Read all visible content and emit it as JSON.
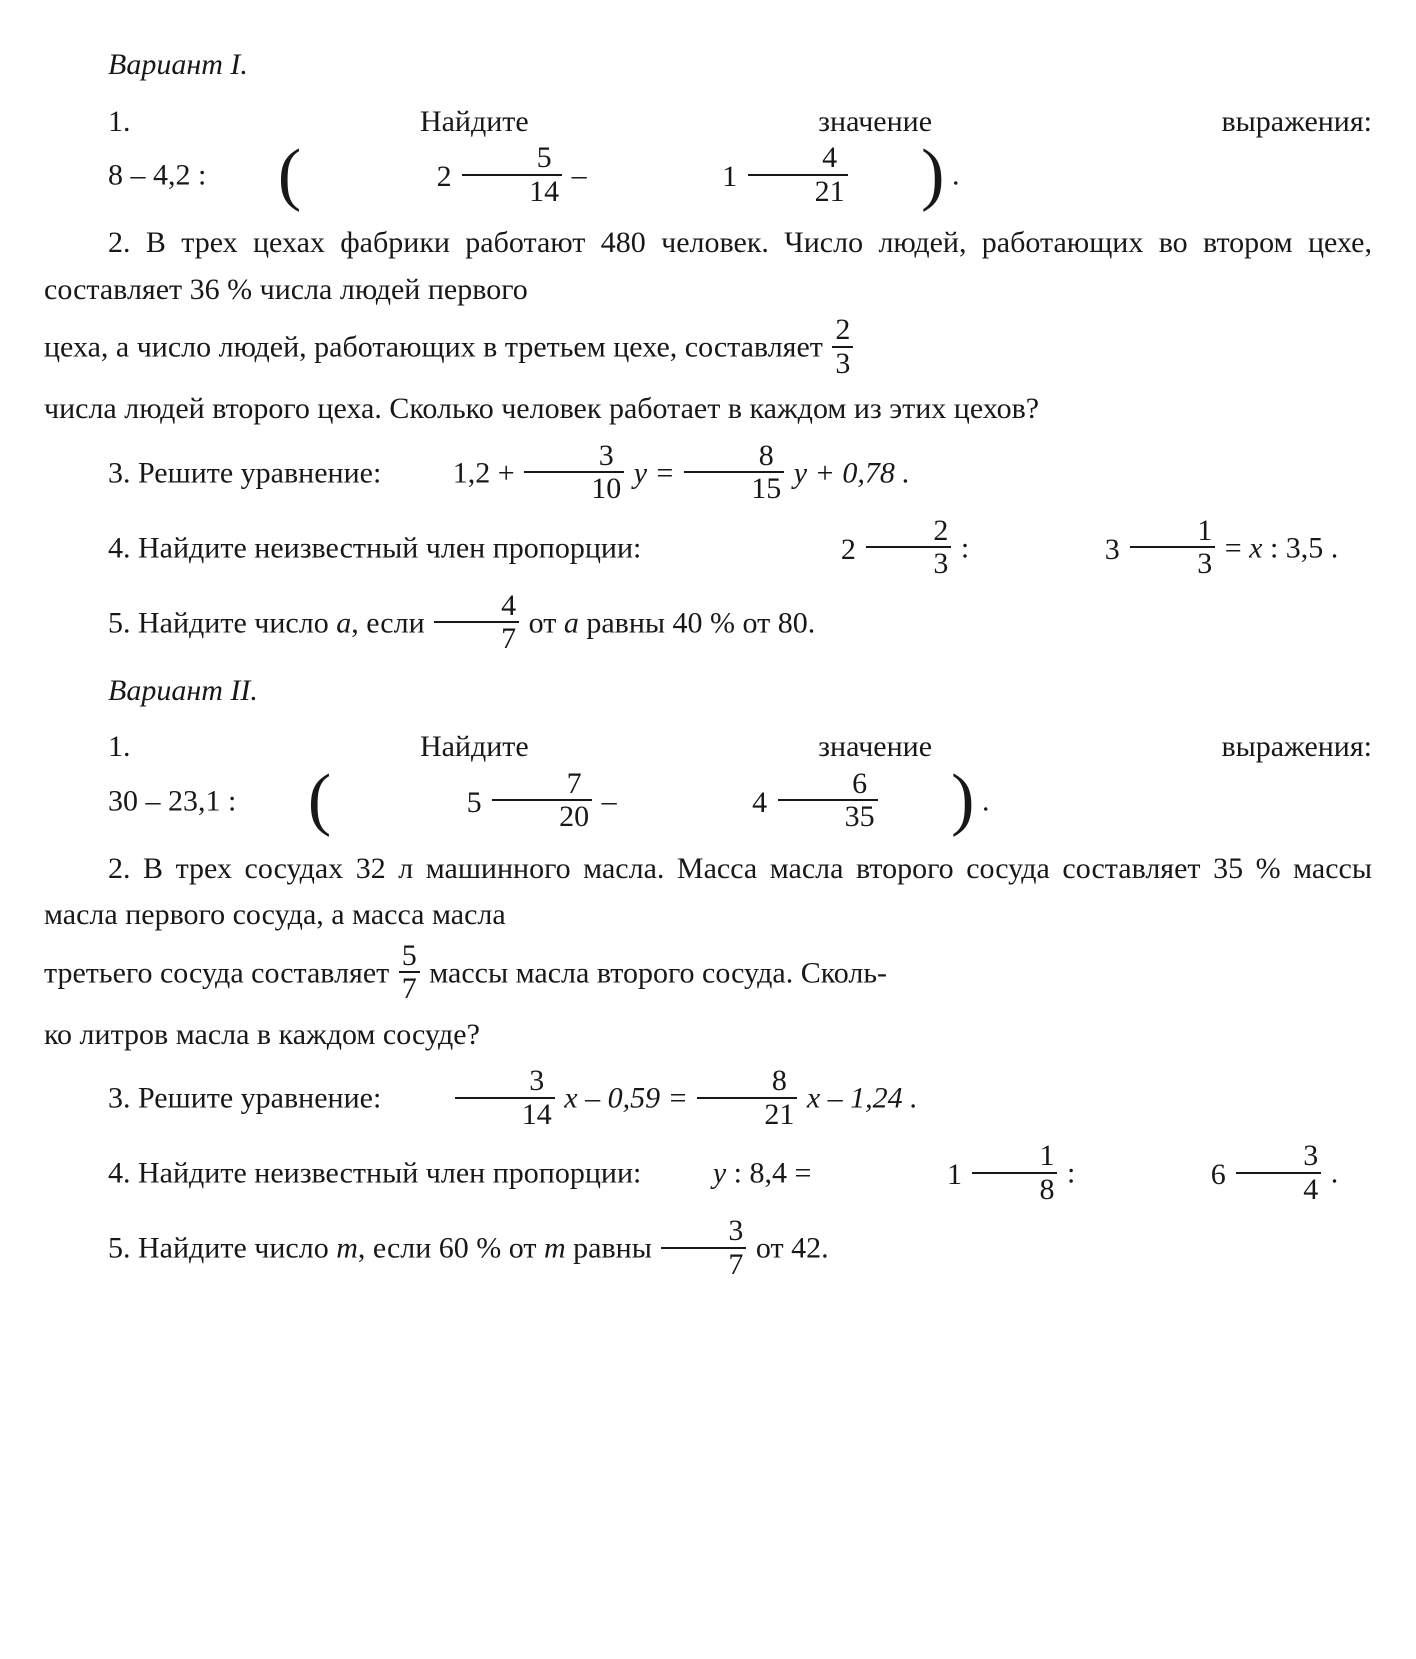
{
  "variant1": {
    "heading": "Вариант I.",
    "t1_a": "1. Найдите значение выражения: ",
    "t1_e_a": "8 – 4,2 : ",
    "t1_frac1_w": "2",
    "t1_frac1_n": "5",
    "t1_frac1_d": "14",
    "t1_mid": " – ",
    "t1_frac2_w": "1",
    "t1_frac2_n": "4",
    "t1_frac2_d": "21",
    "t1_end": " .",
    "t2_p1": "2. В трех цехах фабрики работают 480 человек. Число людей, работающих во втором цехе, составляет 36 % числа людей первого ",
    "t2_p2a": "цеха, а число людей, работающих в третьем цехе, составляет ",
    "t2_frac_n": "2",
    "t2_frac_d": "3",
    "t2_p3": "числа людей второго цеха. Сколько человек работает в каждом из этих цехов?",
    "t3_a": "3. Решите уравнение: ",
    "t3_e1": "1,2 + ",
    "t3_f1n": "3",
    "t3_f1d": "10",
    "t3_y1": " y = ",
    "t3_f2n": "8",
    "t3_f2d": "15",
    "t3_y2": " y + 0,78 .",
    "t4_a": "4. Найдите неизвестный член пропорции: ",
    "t4_m1w": "2",
    "t4_m1n": "2",
    "t4_m1d": "3",
    "t4_s1": " : ",
    "t4_m2w": "3",
    "t4_m2n": "1",
    "t4_m2d": "3",
    "t4_s2": " = ",
    "t4_x": "x",
    "t4_s3": " : 3,5 .",
    "t5_a": "5. Найдите число ",
    "t5_a2": "a",
    "t5_a3": ", если ",
    "t5_fn": "4",
    "t5_fd": "7",
    "t5_b": " от ",
    "t5_b2": "a",
    "t5_c": " равны 40 % от 80."
  },
  "variant2": {
    "heading": "Вариант II.",
    "t1_a": "1. Найдите значение выражения: ",
    "t1_e_a": "30 – 23,1 : ",
    "t1_frac1_w": "5",
    "t1_frac1_n": "7",
    "t1_frac1_d": "20",
    "t1_mid": " – ",
    "t1_frac2_w": "4",
    "t1_frac2_n": "6",
    "t1_frac2_d": "35",
    "t1_end": " .",
    "t2_p1": "2. В трех сосудах 32 л машинного масла. Масса масла второго сосуда составляет 35 % массы масла первого сосуда, а масса масла ",
    "t2_p2a": "третьего сосуда составляет ",
    "t2_frac_n": "5",
    "t2_frac_d": "7",
    "t2_p2b": " массы масла второго сосуда. Сколь-",
    "t2_p3": "ко литров масла в каждом сосуде?",
    "t3_a": "3. Решите уравнение: ",
    "t3_f1n": "3",
    "t3_f1d": "14",
    "t3_x1": " x – 0,59 = ",
    "t3_f2n": "8",
    "t3_f2d": "21",
    "t3_x2": " x – 1,24 .",
    "t4_a": "4. Найдите неизвестный член пропорции: ",
    "t4_y": "y",
    "t4_s0": " : 8,4 = ",
    "t4_m1w": "1",
    "t4_m1n": "1",
    "t4_m1d": "8",
    "t4_s1": " : ",
    "t4_m2w": "6",
    "t4_m2n": "3",
    "t4_m2d": "4",
    "t4_end": " .",
    "t5_a": "5. Найдите число ",
    "t5_m": "m",
    "t5_b": ", если 60 % от ",
    "t5_m2": "m",
    "t5_c": " равны ",
    "t5_fn": "3",
    "t5_fd": "7",
    "t5_d": " от 42."
  }
}
